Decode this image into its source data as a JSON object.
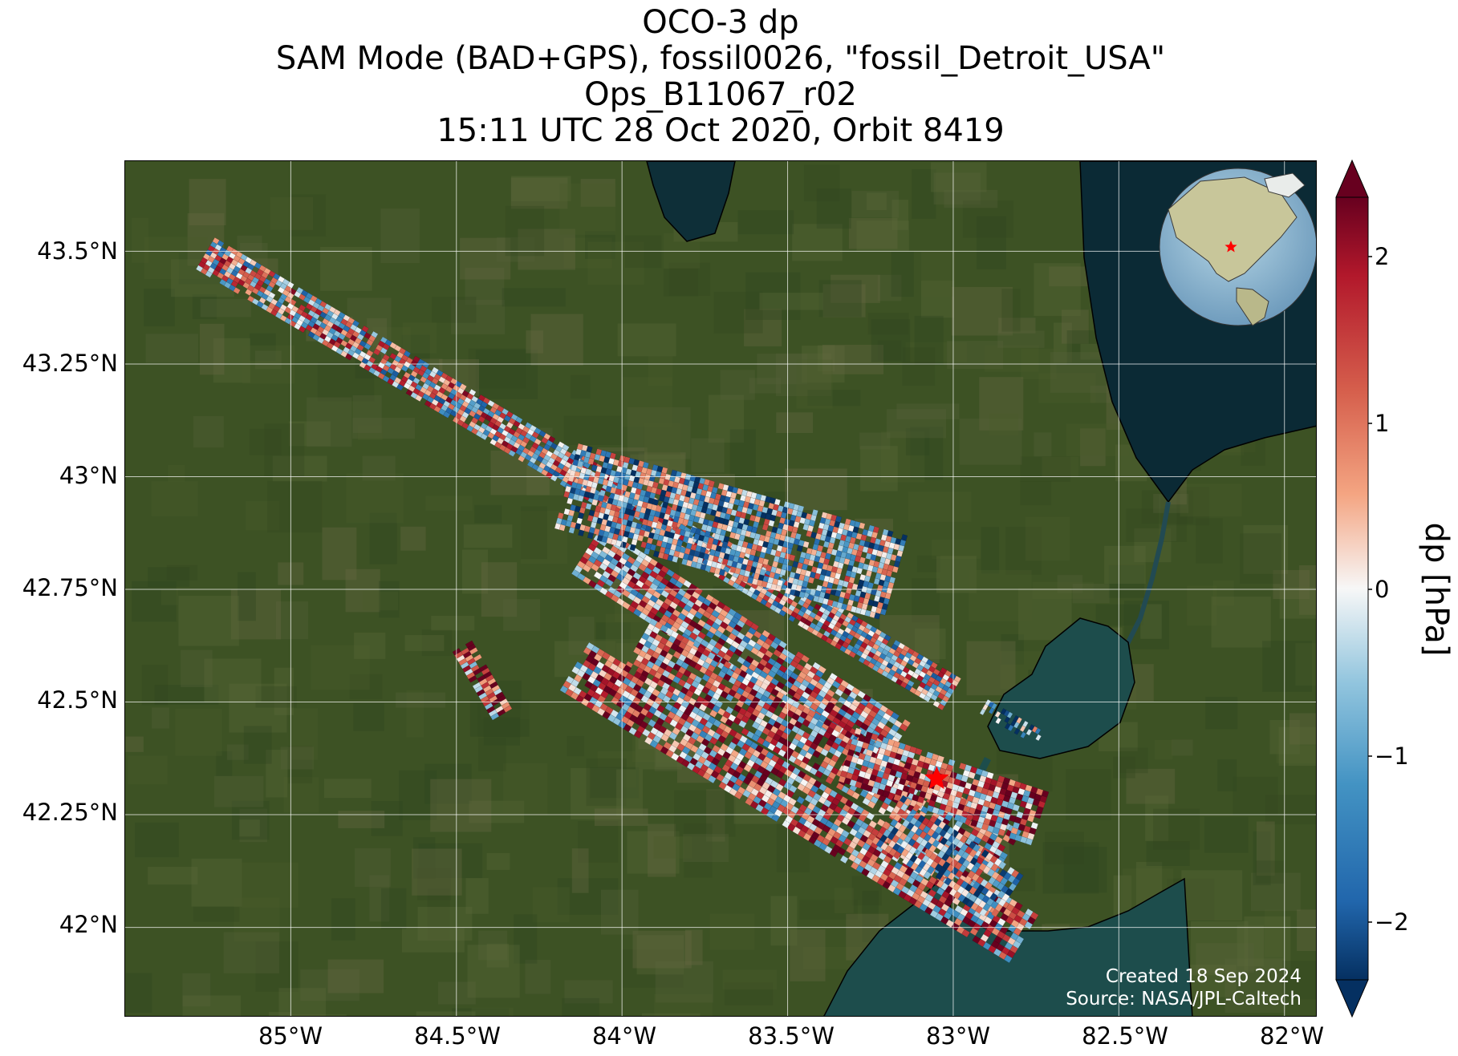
{
  "title": {
    "line1": "OCO-3 dp",
    "line2": "SAM Mode (BAD+GPS), fossil0026, \"fossil_Detroit_USA\"",
    "line3": "Ops_B11067_r02",
    "line4": "15:11 UTC 28 Oct 2020, Orbit 8419"
  },
  "axes": {
    "lon_ticks": [
      "85°W",
      "84.5°W",
      "84°W",
      "83.5°W",
      "83°W",
      "82.5°W",
      "82°W"
    ],
    "lat_ticks": [
      "43.5°N",
      "43.25°N",
      "43°N",
      "42.75°N",
      "42.5°N",
      "42.25°N",
      "42°N"
    ],
    "lon_range": [
      -85.5,
      -81.9
    ],
    "lat_range": [
      41.8,
      43.7
    ],
    "grid": true
  },
  "target": {
    "lon": -83.05,
    "lat": 42.33,
    "color": "#ff0000"
  },
  "credits": {
    "created": "Created 18 Sep 2024",
    "source": "Source: NASA/JPL-Caltech"
  },
  "colorbar": {
    "label": "dp [hPa]",
    "ticks": [
      "2",
      "1",
      "0",
      "−1",
      "−2"
    ],
    "range": [
      -2.4,
      2.4
    ],
    "colormap": "RdBu_r",
    "extend": "both"
  },
  "inset_globe": {
    "marker_color": "#ff0000"
  },
  "colors": {
    "land": "#3d5224",
    "water": "#1d4d4c",
    "lake_dark": "#0b2a35",
    "grid": "#ffffff"
  }
}
